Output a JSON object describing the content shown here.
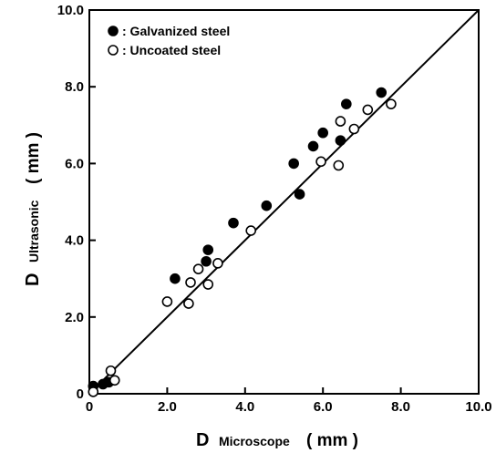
{
  "chart_data": {
    "type": "scatter",
    "title": "",
    "xlabel": {
      "main": "D",
      "sub": "Microscope",
      "unit": "( mm )"
    },
    "ylabel": {
      "main": "D",
      "sub": "Ultrasonic",
      "unit": "( mm )"
    },
    "xlim": [
      0,
      10
    ],
    "ylim": [
      0,
      10
    ],
    "xticks": [
      0,
      2,
      4,
      6,
      8,
      10
    ],
    "yticks": [
      0,
      2,
      4,
      6,
      8,
      10
    ],
    "xtick_labels": [
      "0",
      "2.0",
      "4.0",
      "6.0",
      "8.0",
      "10.0"
    ],
    "ytick_labels": [
      "0",
      "2.0",
      "4.0",
      "6.0",
      "8.0",
      "10.0"
    ],
    "grid": false,
    "legend_position": "top-left",
    "reference_line": {
      "from": [
        0,
        0
      ],
      "to": [
        10,
        10
      ]
    },
    "series": [
      {
        "name": ": Galvanized steel",
        "marker": "filled-circle",
        "points": [
          [
            0.1,
            0.2
          ],
          [
            0.35,
            0.25
          ],
          [
            0.5,
            0.3
          ],
          [
            2.2,
            3.0
          ],
          [
            3.0,
            3.45
          ],
          [
            3.05,
            3.75
          ],
          [
            3.7,
            4.45
          ],
          [
            4.55,
            4.9
          ],
          [
            5.25,
            6.0
          ],
          [
            5.4,
            5.2
          ],
          [
            5.75,
            6.45
          ],
          [
            6.0,
            6.8
          ],
          [
            6.45,
            6.6
          ],
          [
            6.6,
            7.55
          ],
          [
            7.5,
            7.85
          ]
        ]
      },
      {
        "name": ": Uncoated steel",
        "marker": "open-circle",
        "points": [
          [
            0.1,
            0.05
          ],
          [
            0.55,
            0.6
          ],
          [
            0.65,
            0.35
          ],
          [
            2.0,
            2.4
          ],
          [
            2.55,
            2.35
          ],
          [
            2.6,
            2.9
          ],
          [
            2.8,
            3.25
          ],
          [
            3.05,
            2.85
          ],
          [
            3.3,
            3.4
          ],
          [
            4.15,
            4.25
          ],
          [
            5.95,
            6.05
          ],
          [
            6.4,
            5.95
          ],
          [
            6.45,
            7.1
          ],
          [
            6.8,
            6.9
          ],
          [
            7.15,
            7.4
          ],
          [
            7.75,
            7.55
          ]
        ]
      }
    ]
  }
}
